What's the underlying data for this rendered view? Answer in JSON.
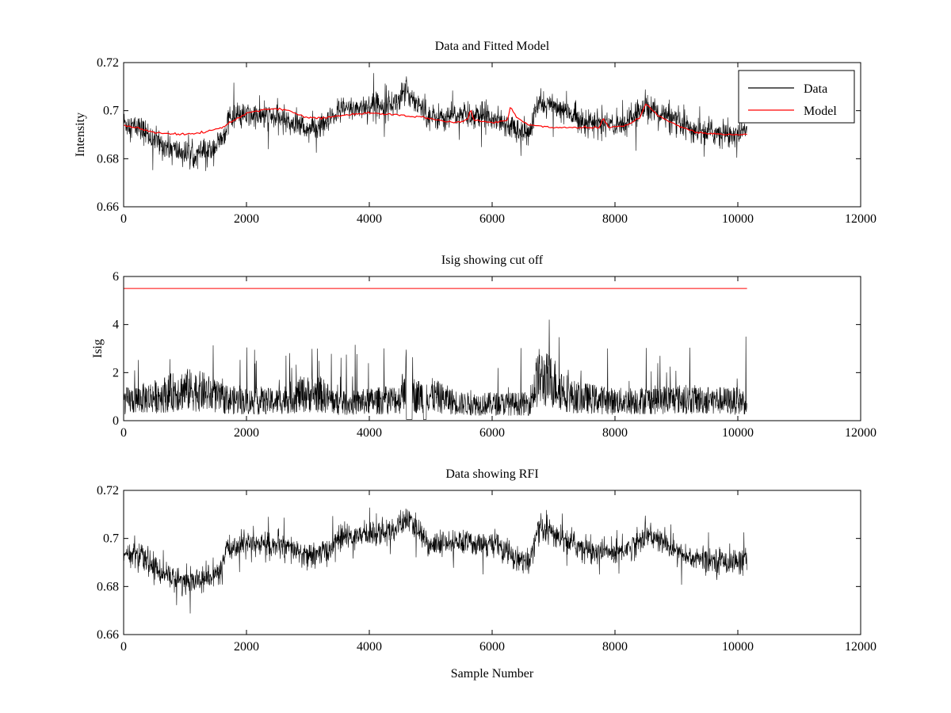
{
  "figure": {
    "background": "#ffffff"
  },
  "chart_data": [
    {
      "type": "line",
      "title": "Data and Fitted Model",
      "xlabel": "",
      "ylabel": "Intensity",
      "xlim": [
        0,
        12000
      ],
      "ylim": [
        0.66,
        0.72
      ],
      "xticks": [
        "0",
        "2000",
        "4000",
        "6000",
        "8000",
        "10000",
        "12000"
      ],
      "yticks": [
        "0.66",
        "0.68",
        "0.7",
        "0.72"
      ],
      "legend": {
        "position": "top-right",
        "entries": [
          "Data",
          "Model"
        ]
      },
      "series": [
        {
          "name": "Data",
          "color": "#000000",
          "kind": "noisy",
          "noise": 0.006,
          "spike": 0.012,
          "baseline": [
            [
              0,
              0.695
            ],
            [
              300,
              0.692
            ],
            [
              600,
              0.686
            ],
            [
              1000,
              0.682
            ],
            [
              1400,
              0.683
            ],
            [
              1600,
              0.688
            ],
            [
              1700,
              0.696
            ],
            [
              2000,
              0.698
            ],
            [
              2500,
              0.697
            ],
            [
              2800,
              0.695
            ],
            [
              3000,
              0.692
            ],
            [
              3200,
              0.694
            ],
            [
              3300,
              0.694
            ],
            [
              3500,
              0.7
            ],
            [
              4000,
              0.702
            ],
            [
              4400,
              0.703
            ],
            [
              4600,
              0.708
            ],
            [
              4800,
              0.703
            ],
            [
              5000,
              0.697
            ],
            [
              5500,
              0.698
            ],
            [
              6000,
              0.698
            ],
            [
              6400,
              0.692
            ],
            [
              6600,
              0.69
            ],
            [
              6750,
              0.703
            ],
            [
              7000,
              0.702
            ],
            [
              7300,
              0.698
            ],
            [
              7600,
              0.695
            ],
            [
              8000,
              0.694
            ],
            [
              8300,
              0.697
            ],
            [
              8500,
              0.702
            ],
            [
              8800,
              0.698
            ],
            [
              9200,
              0.692
            ],
            [
              10000,
              0.69
            ],
            [
              10150,
              0.692
            ]
          ]
        },
        {
          "name": "Model",
          "color": "#ff0000",
          "kind": "smooth",
          "points": [
            [
              0,
              0.694
            ],
            [
              500,
              0.691
            ],
            [
              1000,
              0.69
            ],
            [
              1300,
              0.691
            ],
            [
              1600,
              0.693
            ],
            [
              2000,
              0.699
            ],
            [
              2400,
              0.701
            ],
            [
              2700,
              0.7
            ],
            [
              3000,
              0.697
            ],
            [
              3200,
              0.697
            ],
            [
              3600,
              0.698
            ],
            [
              4000,
              0.699
            ],
            [
              4600,
              0.698
            ],
            [
              4900,
              0.697
            ],
            [
              5400,
              0.695
            ],
            [
              5600,
              0.696
            ],
            [
              5650,
              0.701
            ],
            [
              5700,
              0.696
            ],
            [
              6000,
              0.695
            ],
            [
              6250,
              0.696
            ],
            [
              6300,
              0.702
            ],
            [
              6400,
              0.697
            ],
            [
              6600,
              0.694
            ],
            [
              7000,
              0.693
            ],
            [
              7200,
              0.693
            ],
            [
              7500,
              0.693
            ],
            [
              7750,
              0.693
            ],
            [
              7800,
              0.697
            ],
            [
              7900,
              0.693
            ],
            [
              8200,
              0.694
            ],
            [
              8400,
              0.697
            ],
            [
              8500,
              0.703
            ],
            [
              8700,
              0.698
            ],
            [
              9000,
              0.694
            ],
            [
              9300,
              0.691
            ],
            [
              9800,
              0.69
            ],
            [
              10150,
              0.69
            ]
          ]
        }
      ]
    },
    {
      "type": "line",
      "title": "Isig showing cut off",
      "xlabel": "",
      "ylabel": "Isig",
      "xlim": [
        0,
        12000
      ],
      "ylim": [
        0,
        6
      ],
      "xticks": [
        "0",
        "2000",
        "4000",
        "6000",
        "8000",
        "10000",
        "12000"
      ],
      "yticks": [
        "0",
        "2",
        "4",
        "6"
      ],
      "series": [
        {
          "color": "#000000",
          "kind": "isig",
          "spike": 2.2,
          "baseline": [
            [
              0,
              0.8
            ],
            [
              500,
              1.0
            ],
            [
              1000,
              1.3
            ],
            [
              1300,
              1.2
            ],
            [
              1600,
              0.9
            ],
            [
              2000,
              0.8
            ],
            [
              2500,
              0.8
            ],
            [
              2900,
              1.1
            ],
            [
              3200,
              1.1
            ],
            [
              3500,
              0.7
            ],
            [
              4000,
              0.8
            ],
            [
              4500,
              0.9
            ],
            [
              4600,
              1.8
            ],
            [
              4750,
              1.0
            ],
            [
              4950,
              1.1
            ],
            [
              5500,
              0.7
            ],
            [
              6000,
              0.7
            ],
            [
              6600,
              0.7
            ],
            [
              6750,
              1.8
            ],
            [
              7000,
              1.6
            ],
            [
              7300,
              1.0
            ],
            [
              8000,
              0.8
            ],
            [
              9000,
              0.9
            ],
            [
              10150,
              0.8
            ]
          ],
          "gaps": [
            [
              4600,
              4700
            ],
            [
              4880,
              4930
            ]
          ]
        },
        {
          "color": "#ff0000",
          "kind": "flat",
          "points": [
            [
              0,
              5.5
            ],
            [
              10150,
              5.5
            ]
          ]
        }
      ]
    },
    {
      "type": "line",
      "title": "Data showing RFI",
      "xlabel": "Sample Number",
      "ylabel": "",
      "xlim": [
        0,
        12000
      ],
      "ylim": [
        0.66,
        0.72
      ],
      "xticks": [
        "0",
        "2000",
        "4000",
        "6000",
        "8000",
        "10000",
        "12000"
      ],
      "yticks": [
        "0.66",
        "0.68",
        "0.7",
        "0.72"
      ],
      "series": [
        {
          "color": "#000000",
          "kind": "noisy",
          "noise": 0.006,
          "spike": 0.012,
          "baseline": [
            [
              0,
              0.695
            ],
            [
              300,
              0.692
            ],
            [
              600,
              0.686
            ],
            [
              1000,
              0.682
            ],
            [
              1400,
              0.683
            ],
            [
              1600,
              0.688
            ],
            [
              1700,
              0.696
            ],
            [
              2000,
              0.698
            ],
            [
              2500,
              0.697
            ],
            [
              2800,
              0.695
            ],
            [
              3000,
              0.692
            ],
            [
              3200,
              0.694
            ],
            [
              3300,
              0.694
            ],
            [
              3500,
              0.7
            ],
            [
              4000,
              0.702
            ],
            [
              4400,
              0.703
            ],
            [
              4600,
              0.708
            ],
            [
              4800,
              0.703
            ],
            [
              5000,
              0.697
            ],
            [
              5500,
              0.698
            ],
            [
              6000,
              0.698
            ],
            [
              6400,
              0.692
            ],
            [
              6600,
              0.69
            ],
            [
              6750,
              0.703
            ],
            [
              7000,
              0.702
            ],
            [
              7300,
              0.698
            ],
            [
              7600,
              0.695
            ],
            [
              8000,
              0.694
            ],
            [
              8300,
              0.697
            ],
            [
              8500,
              0.702
            ],
            [
              8800,
              0.698
            ],
            [
              9200,
              0.692
            ],
            [
              10000,
              0.69
            ],
            [
              10150,
              0.692
            ]
          ]
        }
      ]
    }
  ]
}
